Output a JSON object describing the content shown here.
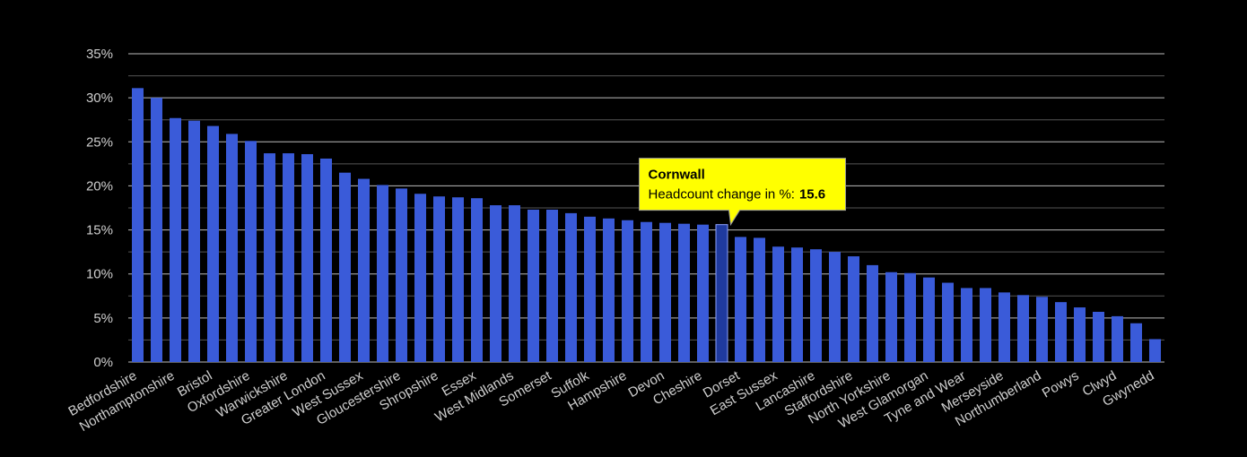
{
  "chart_data": {
    "type": "bar",
    "categories": [
      "Bedfordshire",
      null,
      "Northamptonshire",
      null,
      "Bristol",
      null,
      "Oxfordshire",
      null,
      "Warwickshire",
      null,
      "Greater London",
      null,
      "West Sussex",
      null,
      "Gloucestershire",
      null,
      "Shropshire",
      null,
      "Essex",
      null,
      "West Midlands",
      null,
      "Somerset",
      null,
      "Suffolk",
      null,
      "Hampshire",
      null,
      "Devon",
      null,
      "Cheshire",
      null,
      "Dorset",
      null,
      "East Sussex",
      null,
      "Lancashire",
      null,
      "Staffordshire",
      null,
      "North Yorkshire",
      null,
      "West Glamorgan",
      null,
      "Tyne and Wear",
      null,
      "Merseyside",
      null,
      "Northumberland",
      null,
      "Powys",
      null,
      "Clwyd",
      null,
      "Gwynedd"
    ],
    "values": [
      31.1,
      30.0,
      27.7,
      27.4,
      26.8,
      25.9,
      25.1,
      23.7,
      23.7,
      23.6,
      23.1,
      21.5,
      20.8,
      20.1,
      19.7,
      19.1,
      18.8,
      18.7,
      18.6,
      17.8,
      17.8,
      17.3,
      17.3,
      16.9,
      16.5,
      16.3,
      16.1,
      15.9,
      15.8,
      15.7,
      15.6,
      15.6,
      14.2,
      14.1,
      13.1,
      13.0,
      12.8,
      12.5,
      12.0,
      11.0,
      10.2,
      10.1,
      9.6,
      9.0,
      8.4,
      8.4,
      7.9,
      7.6,
      7.4,
      6.8,
      6.2,
      5.7,
      5.2,
      4.4,
      2.6
    ],
    "color": "#3a5bd9",
    "highlight_color": "#1f3a9e",
    "ylim": [
      0,
      35
    ],
    "yticks": [
      {
        "value": 0,
        "label": "0%"
      },
      {
        "value": 5,
        "label": "5%"
      },
      {
        "value": 10,
        "label": "10%"
      },
      {
        "value": 15,
        "label": "15%"
      },
      {
        "value": 20,
        "label": "20%"
      },
      {
        "value": 25,
        "label": "25%"
      },
      {
        "value": 30,
        "label": "30%"
      },
      {
        "value": 35,
        "label": "35%"
      }
    ],
    "minor_yticks": [
      2.5,
      7.5,
      12.5,
      17.5,
      22.5,
      27.5,
      32.5
    ],
    "grid": true,
    "tooltip": {
      "index": 31,
      "title": "Cornwall",
      "label": "Headcount change in %:",
      "value": 15.6
    }
  }
}
